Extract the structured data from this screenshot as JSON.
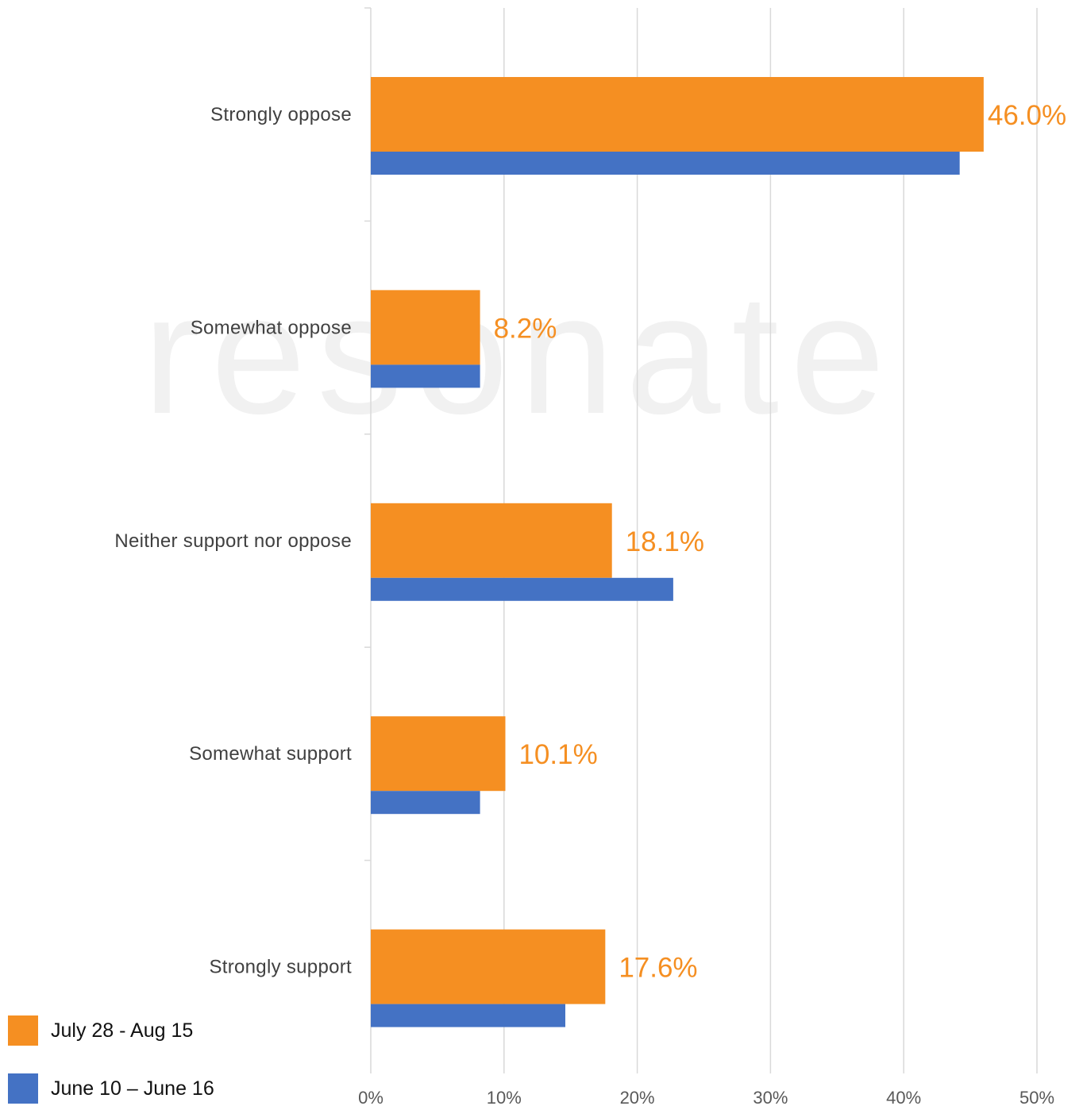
{
  "chart_data": {
    "type": "bar",
    "orientation": "horizontal",
    "categories": [
      "Strongly oppose",
      "Somewhat oppose",
      "Neither support nor oppose",
      "Somewhat support",
      "Strongly support"
    ],
    "series": [
      {
        "name": "July 28 - Aug 15",
        "color": "#f58f22",
        "values": [
          46.0,
          8.2,
          18.1,
          10.1,
          17.6
        ],
        "labels": [
          "46.0%",
          "8.2%",
          "18.1%",
          "10.1%",
          "17.6%"
        ]
      },
      {
        "name": "June 10 – June 16",
        "color": "#4472c4",
        "values": [
          44.2,
          8.2,
          22.7,
          8.2,
          14.6
        ]
      }
    ],
    "xlim": [
      0,
      50
    ],
    "xticks": [
      "0%",
      "10%",
      "20%",
      "30%",
      "40%",
      "50%"
    ],
    "grid": true,
    "legend_position": "bottom-left"
  },
  "watermark": "resonate"
}
